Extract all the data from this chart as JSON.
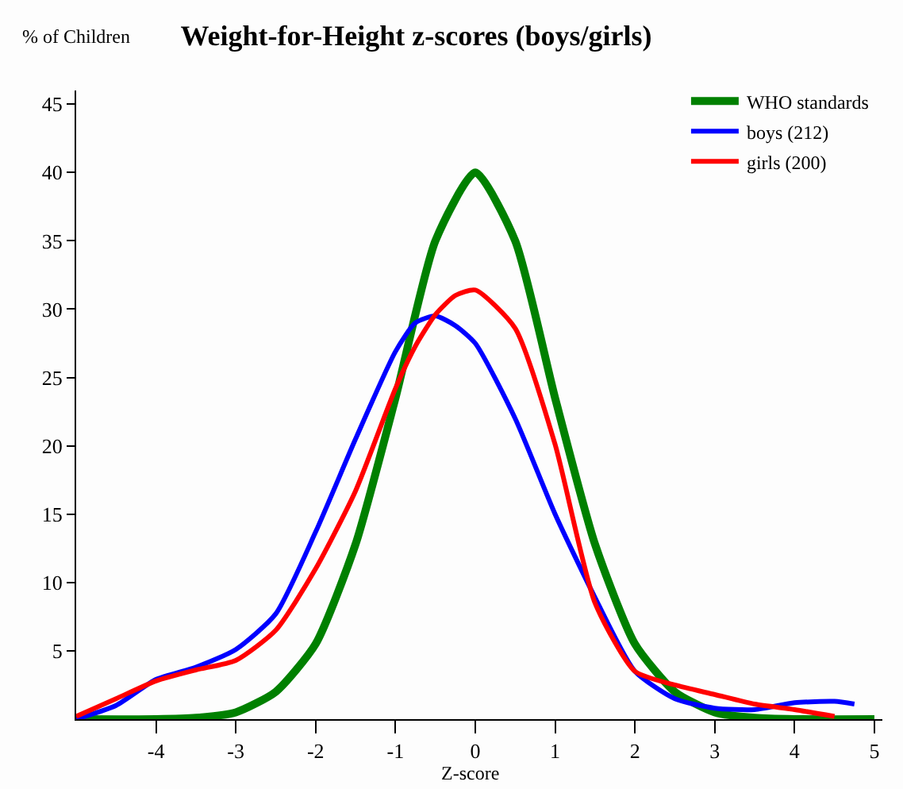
{
  "chart_data": {
    "type": "line",
    "title": "Weight-for-Height z-scores (boys/girls)",
    "xlabel": "Z-score",
    "ylabel": "% of Children",
    "xlim": [
      -5,
      5.1
    ],
    "xticks": [
      -4,
      -3,
      -2,
      -1,
      0,
      1,
      2,
      3,
      4,
      5
    ],
    "ylim": [
      0,
      46
    ],
    "yticks": [
      5,
      10,
      15,
      20,
      25,
      30,
      35,
      40,
      45
    ],
    "legend": "top right",
    "marker": "none",
    "line_style": "solid",
    "series": [
      {
        "name": "WHO standards",
        "color": "#008000",
        "x": [
          -5,
          -4,
          -3.5,
          -3,
          -2.5,
          -2,
          -1.5,
          -1,
          -0.5,
          0,
          0.5,
          1,
          1.5,
          2,
          2.5,
          3,
          3.5,
          4,
          5
        ],
        "values": [
          0,
          0,
          0.1,
          0.5,
          2,
          5.5,
          12.8,
          23.5,
          35,
          40,
          35,
          23.5,
          12.8,
          5.5,
          2,
          0.5,
          0.1,
          0,
          0
        ]
      },
      {
        "name": "boys (212)",
        "color": "#0000ff",
        "x": [
          -5,
          -4.5,
          -4,
          -3.5,
          -3,
          -2.5,
          -2,
          -1.5,
          -1,
          -0.75,
          -0.5,
          -0.25,
          0,
          0.5,
          1,
          1.5,
          2,
          2.5,
          3,
          3.5,
          4,
          4.5,
          4.75
        ],
        "values": [
          0,
          1,
          2.9,
          3.8,
          5.1,
          7.7,
          13.7,
          20.5,
          26.9,
          29,
          29.5,
          28.8,
          27.5,
          22,
          15,
          8.9,
          3.5,
          1.5,
          0.8,
          0.7,
          1.2,
          1.3,
          1.1
        ]
      },
      {
        "name": "girls (200)",
        "color": "#ff0000",
        "x": [
          -5,
          -4.5,
          -4,
          -3.5,
          -3,
          -2.5,
          -2,
          -1.5,
          -1,
          -0.75,
          -0.5,
          -0.25,
          0,
          0.5,
          1,
          1.5,
          2,
          2.5,
          3,
          3.5,
          4,
          4.5
        ],
        "values": [
          0.2,
          1.5,
          2.8,
          3.6,
          4.3,
          6.5,
          11,
          16.7,
          24.2,
          27.3,
          29.6,
          31,
          31.4,
          28.6,
          20.1,
          8.5,
          3.5,
          2.5,
          1.8,
          1.1,
          0.7,
          0.2
        ]
      }
    ]
  }
}
